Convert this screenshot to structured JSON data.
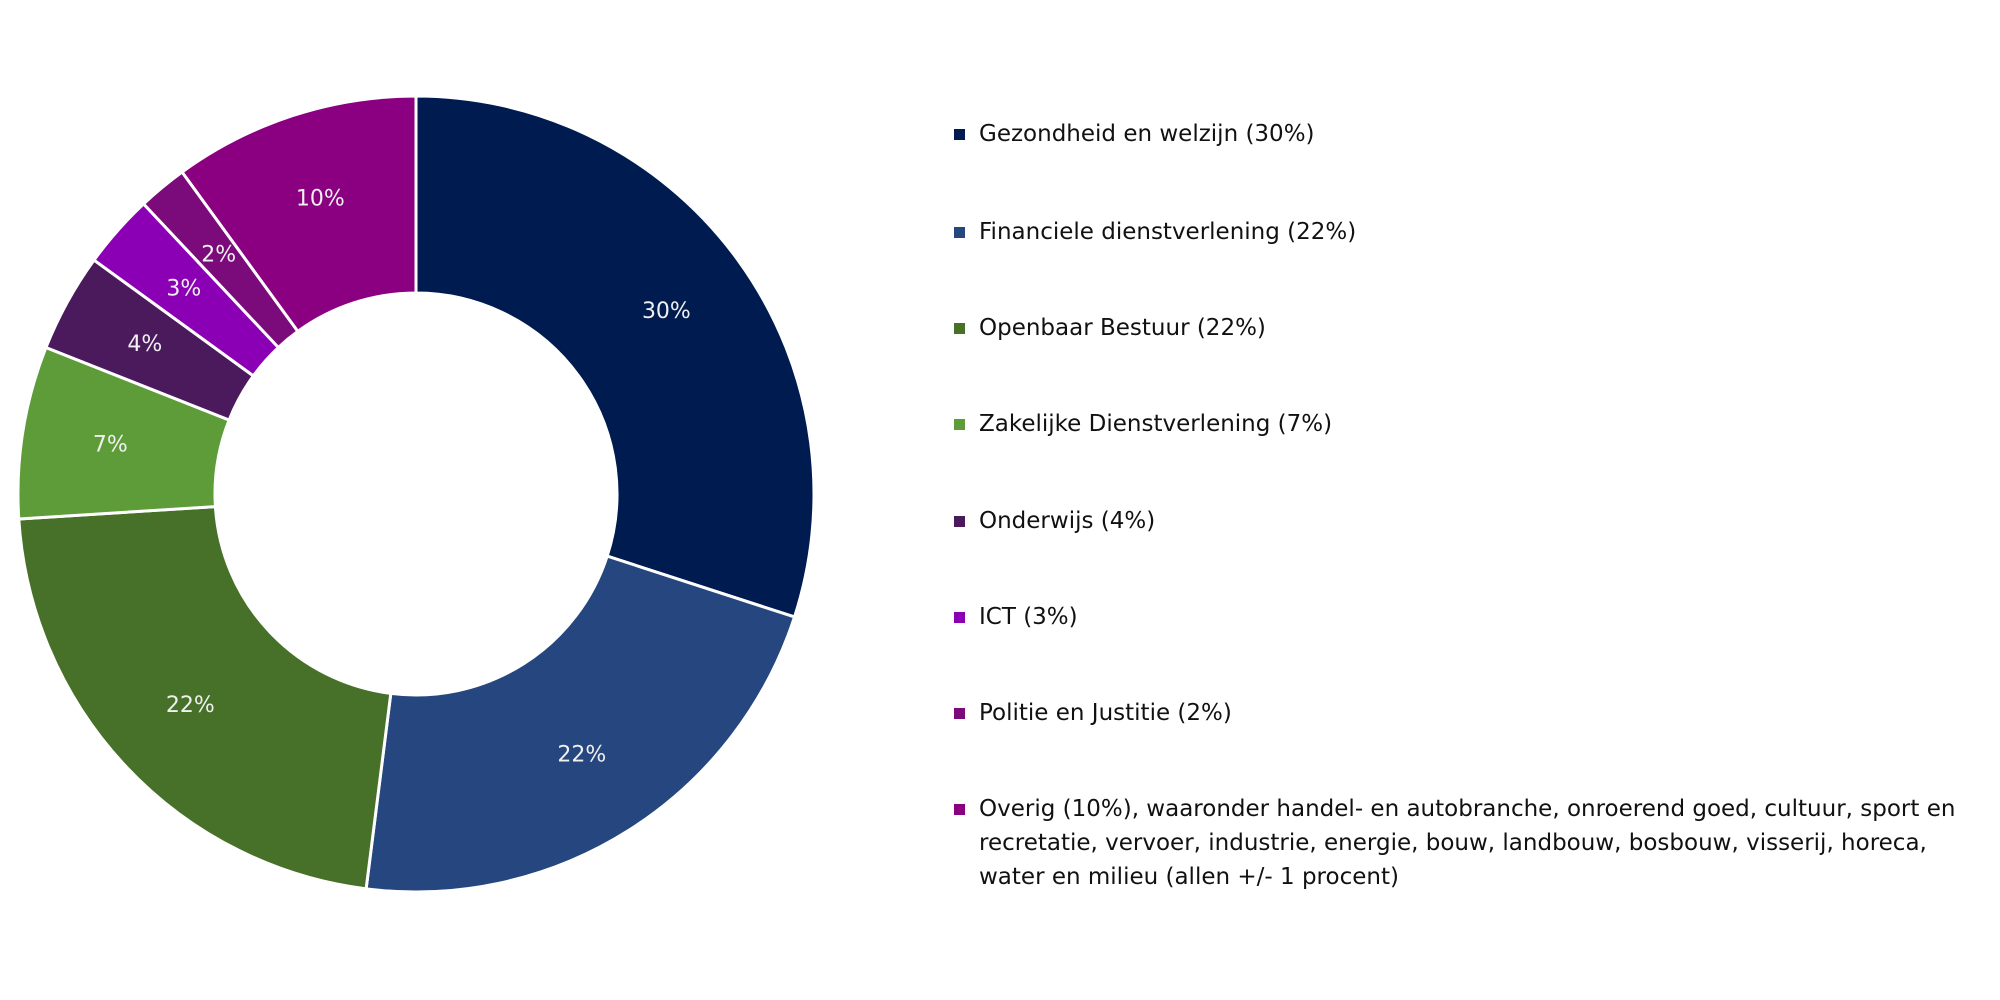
{
  "chart_data": {
    "type": "donut",
    "categories": [
      "Gezondheid en welzijn (30%)",
      "Financiele dienstverlening (22%)",
      "Openbaar Bestuur (22%)",
      "Zakelijke Dienstverlening (7%)",
      "Onderwijs (4%)",
      "ICT (3%)",
      "Politie en Justitie (2%)",
      "Overig (10%), waaronder handel- en autobranche, onroerend goed, cultuur, sport en recretatie, vervoer, industrie, energie, bouw, landbouw, bosbouw, visserij, horeca, water en milieu (allen +/- 1 procent)"
    ],
    "values": [
      30,
      22,
      22,
      7,
      4,
      3,
      2,
      10
    ],
    "value_labels": [
      "30%",
      "22%",
      "22%",
      "7%",
      "4%",
      "3%",
      "2%",
      "10%"
    ],
    "colors": [
      "#001b4f",
      "#25467e",
      "#477128",
      "#5e9c3a",
      "#4b1a5c",
      "#8c00b5",
      "#7b0a7a",
      "#8b0080"
    ],
    "legend": "right"
  }
}
